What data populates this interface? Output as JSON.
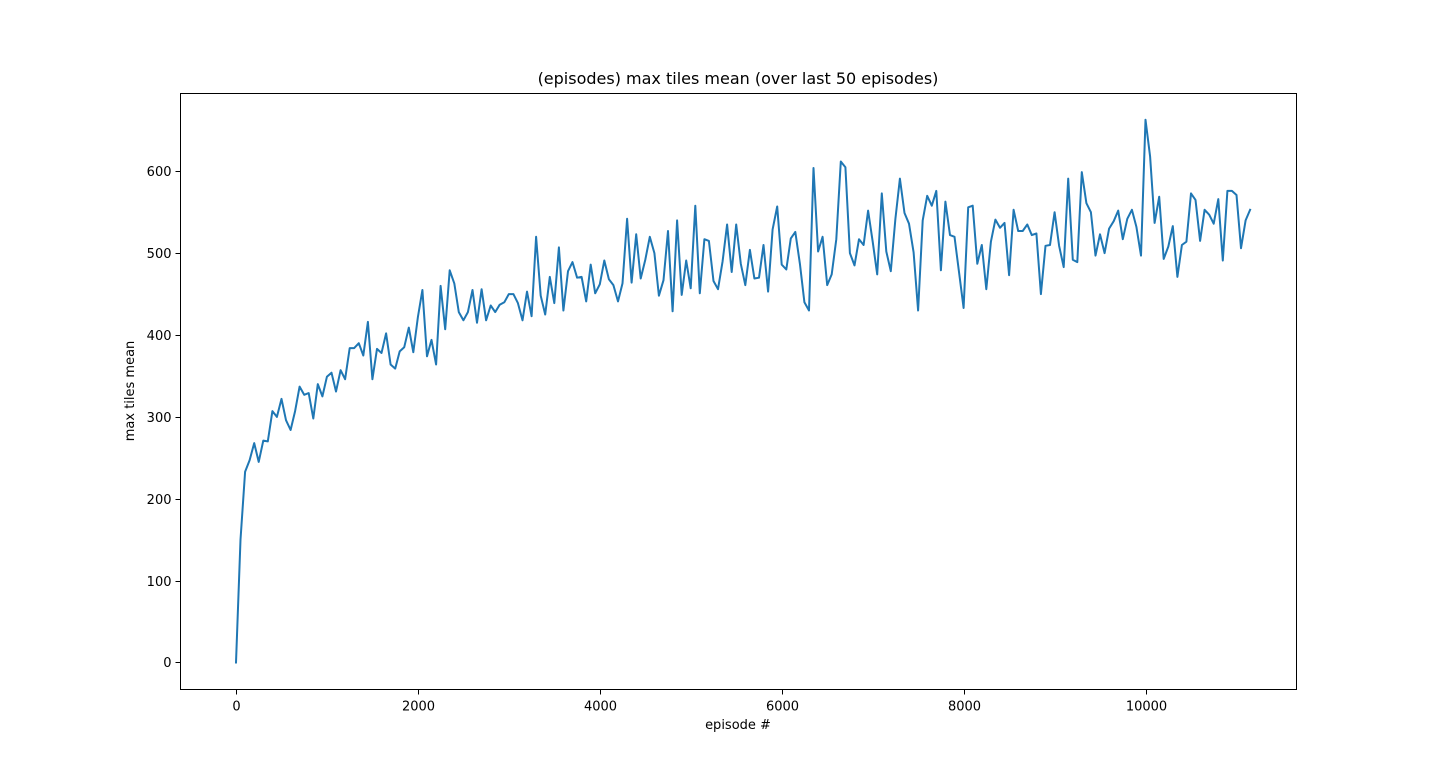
{
  "chart_data": {
    "type": "line",
    "title": "(episodes) max tiles mean (over last 50 episodes)",
    "xlabel": "episode #",
    "ylabel": "max tiles mean",
    "xlim": [
      -610,
      11660
    ],
    "ylim": [
      -33,
      695
    ],
    "xticks": [
      0,
      2000,
      4000,
      6000,
      8000,
      10000
    ],
    "yticks": [
      0,
      100,
      200,
      300,
      400,
      500,
      600
    ],
    "grid": false,
    "legend": "none",
    "colors": {
      "line": "#1f77b4",
      "axes": "#000000",
      "background": "#ffffff"
    },
    "series": [
      {
        "x": [
          0,
          50,
          100,
          150,
          200,
          250,
          300,
          350,
          400,
          450,
          500,
          550,
          600,
          650,
          700,
          750,
          800,
          850,
          900,
          950,
          1000,
          1050,
          1100,
          1150,
          1200,
          1250,
          1300,
          1350,
          1400,
          1450,
          1500,
          1550,
          1600,
          1650,
          1700,
          1750,
          1800,
          1850,
          1900,
          1950,
          2000,
          2050,
          2100,
          2150,
          2200,
          2250,
          2300,
          2350,
          2400,
          2450,
          2500,
          2550,
          2600,
          2650,
          2700,
          2750,
          2800,
          2850,
          2900,
          2950,
          3000,
          3050,
          3100,
          3150,
          3200,
          3250,
          3300,
          3350,
          3400,
          3450,
          3500,
          3550,
          3600,
          3650,
          3700,
          3750,
          3800,
          3850,
          3900,
          3950,
          4000,
          4050,
          4100,
          4150,
          4200,
          4250,
          4300,
          4350,
          4400,
          4450,
          4500,
          4550,
          4600,
          4650,
          4700,
          4750,
          4800,
          4850,
          4900,
          4950,
          5000,
          5050,
          5100,
          5150,
          5200,
          5250,
          5300,
          5350,
          5400,
          5450,
          5500,
          5550,
          5600,
          5650,
          5700,
          5750,
          5800,
          5850,
          5900,
          5950,
          6000,
          6050,
          6100,
          6150,
          6200,
          6250,
          6300,
          6350,
          6400,
          6450,
          6500,
          6550,
          6600,
          6650,
          6700,
          6750,
          6800,
          6850,
          6900,
          6950,
          7000,
          7050,
          7100,
          7150,
          7200,
          7250,
          7300,
          7350,
          7400,
          7450,
          7500,
          7550,
          7600,
          7650,
          7700,
          7750,
          7800,
          7850,
          7900,
          7950,
          8000,
          8050,
          8100,
          8150,
          8200,
          8250,
          8300,
          8350,
          8400,
          8450,
          8500,
          8550,
          8600,
          8650,
          8700,
          8750,
          8800,
          8850,
          8900,
          8950,
          9000,
          9050,
          9100,
          9150,
          9200,
          9250,
          9300,
          9350,
          9400,
          9450,
          9500,
          9550,
          9600,
          9650,
          9700,
          9750,
          9800,
          9850,
          9900,
          9950,
          10000,
          10050,
          10100,
          10150,
          10200,
          10250,
          10300,
          10350,
          10400,
          10450,
          10500,
          10550,
          10600,
          10650,
          10700,
          10750,
          10800,
          10850,
          10900,
          10950,
          11000,
          11050,
          11100,
          11150
        ],
        "values": [
          0,
          150,
          233,
          247,
          268,
          245,
          271,
          270,
          307,
          300,
          322,
          296,
          284,
          307,
          337,
          327,
          329,
          298,
          340,
          325,
          349,
          354,
          331,
          357,
          346,
          384,
          384,
          390,
          375,
          416,
          346,
          383,
          378,
          402,
          364,
          359,
          380,
          385,
          409,
          379,
          422,
          455,
          374,
          394,
          364,
          460,
          407,
          479,
          463,
          428,
          418,
          428,
          455,
          415,
          456,
          418,
          436,
          428,
          437,
          440,
          450,
          450,
          439,
          418,
          453,
          423,
          520,
          448,
          425,
          471,
          439,
          507,
          430,
          478,
          489,
          470,
          471,
          441,
          486,
          451,
          462,
          491,
          468,
          461,
          441,
          463,
          542,
          464,
          523,
          469,
          492,
          520,
          500,
          448,
          467,
          527,
          429,
          540,
          449,
          491,
          457,
          558,
          451,
          517,
          515,
          466,
          456,
          490,
          535,
          477,
          535,
          487,
          461,
          504,
          469,
          470,
          510,
          453,
          529,
          557,
          486,
          480,
          518,
          526,
          487,
          440,
          430,
          604,
          502,
          520,
          461,
          474,
          517,
          612,
          605,
          500,
          485,
          517,
          510,
          552,
          514,
          474,
          573,
          502,
          478,
          542,
          591,
          549,
          536,
          501,
          430,
          540,
          570,
          558,
          576,
          479,
          563,
          522,
          520,
          476,
          433,
          556,
          558,
          487,
          510,
          456,
          514,
          541,
          531,
          537,
          473,
          553,
          527,
          527,
          535,
          522,
          524,
          450,
          509,
          510,
          550,
          509,
          483,
          591,
          492,
          489,
          599,
          561,
          550,
          497,
          523,
          500,
          530,
          539,
          552,
          517,
          542,
          553,
          532,
          497,
          663,
          618,
          537,
          569,
          493,
          508,
          533,
          471,
          510,
          514,
          573,
          565,
          515,
          553,
          547,
          536,
          566,
          491,
          576,
          576,
          571,
          506,
          540,
          553
        ]
      }
    ]
  }
}
